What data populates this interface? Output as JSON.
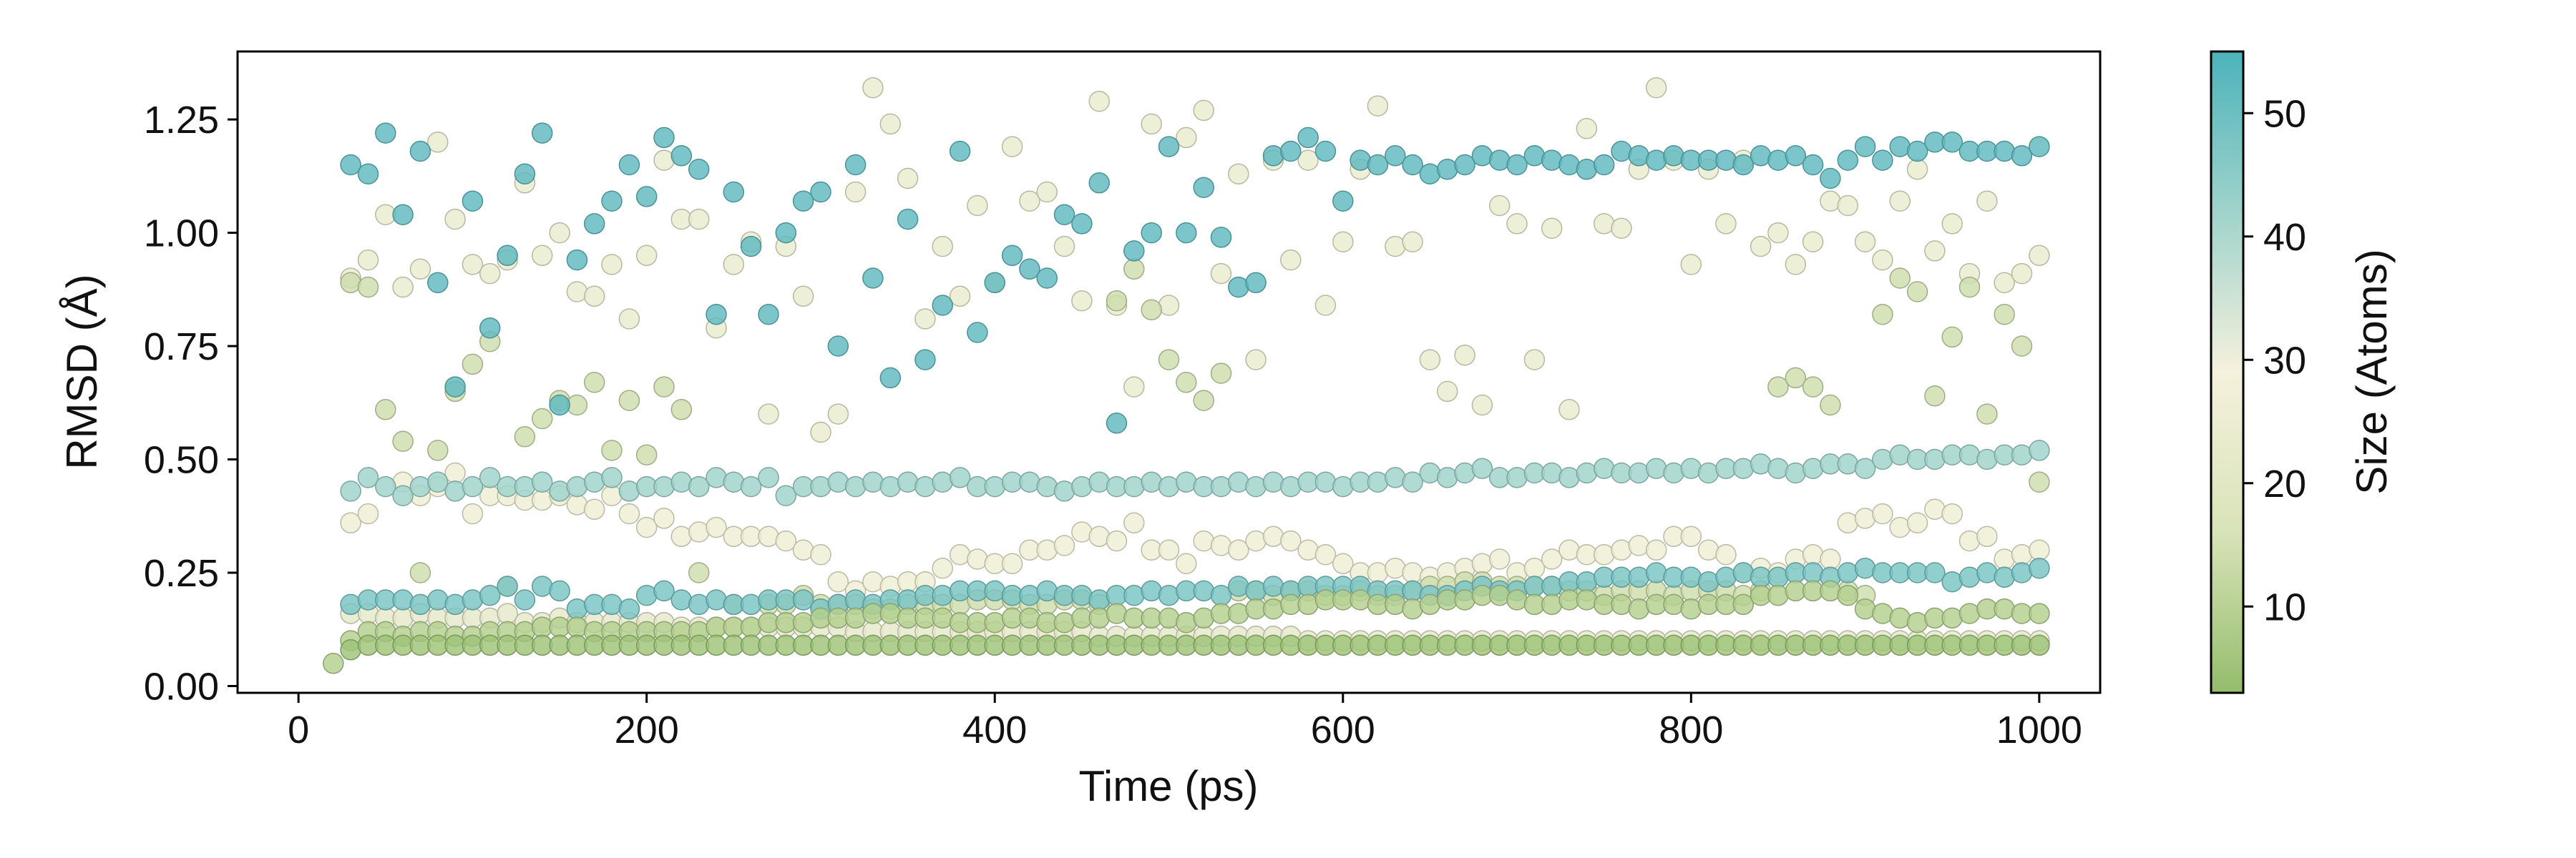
{
  "chart_data": {
    "type": "scatter",
    "title": "",
    "xlabel": "Time (ps)",
    "ylabel": "RMSD (Å)",
    "xlim": [
      -35,
      1035
    ],
    "ylim": [
      -0.015,
      1.4
    ],
    "xticks": [
      0,
      200,
      400,
      600,
      800,
      1000
    ],
    "xtick_labels": [
      "0",
      "200",
      "400",
      "600",
      "800",
      "1000"
    ],
    "yticks": [
      0.0,
      0.25,
      0.5,
      0.75,
      1.0,
      1.25
    ],
    "ytick_labels": [
      "0.00",
      "0.25",
      "0.50",
      "0.75",
      "1.00",
      "1.25"
    ],
    "grid": false,
    "colorbar": {
      "label": "Size (Atoms)",
      "range": [
        3,
        55
      ],
      "ticks": [
        10,
        20,
        30,
        40,
        50
      ],
      "tick_labels": [
        "10",
        "20",
        "30",
        "40",
        "50"
      ],
      "colors": [
        "#93bd6b",
        "#d8e3b8",
        "#f5f1dc",
        "#9fd3cb",
        "#4cb3bb"
      ]
    },
    "x": [
      20,
      30,
      40,
      50,
      60,
      70,
      80,
      90,
      100,
      110,
      120,
      130,
      140,
      150,
      160,
      170,
      180,
      190,
      200,
      210,
      220,
      230,
      240,
      250,
      260,
      270,
      280,
      290,
      300,
      310,
      320,
      330,
      340,
      350,
      360,
      370,
      380,
      390,
      400,
      410,
      420,
      430,
      440,
      450,
      460,
      470,
      480,
      490,
      500,
      510,
      520,
      530,
      540,
      550,
      560,
      570,
      580,
      590,
      600,
      610,
      620,
      630,
      640,
      650,
      660,
      670,
      680,
      690,
      700,
      710,
      720,
      730,
      740,
      750,
      760,
      770,
      780,
      790,
      800,
      810,
      820,
      830,
      840,
      850,
      860,
      870,
      880,
      890,
      900,
      910,
      920,
      930,
      940,
      950,
      960,
      970,
      980,
      990,
      1000
    ],
    "series": [
      {
        "size": 52,
        "values": [
          null,
          1.15,
          1.13,
          1.22,
          1.04,
          1.18,
          0.89,
          0.66,
          1.07,
          0.79,
          0.95,
          1.13,
          1.22,
          0.62,
          0.94,
          1.02,
          1.07,
          1.15,
          1.08,
          1.21,
          1.17,
          1.14,
          0.82,
          1.09,
          0.97,
          0.82,
          1.0,
          1.07,
          1.09,
          0.75,
          1.15,
          0.9,
          0.68,
          1.03,
          0.72,
          0.84,
          1.18,
          0.78,
          0.89,
          0.95,
          0.92,
          0.9,
          1.04,
          1.02,
          1.11,
          0.58,
          0.96,
          1.0,
          1.19,
          1.0,
          1.1,
          0.99,
          0.88,
          0.89,
          1.17,
          1.18,
          1.21,
          1.18,
          1.07,
          1.16,
          1.15,
          1.17,
          1.15,
          1.13,
          1.14,
          1.15,
          1.17,
          1.16,
          1.15,
          1.17,
          1.16,
          1.15,
          1.14,
          1.15,
          1.18,
          1.17,
          1.16,
          1.17,
          1.16,
          1.16,
          1.16,
          1.15,
          1.17,
          1.16,
          1.17,
          1.15,
          1.12,
          1.16,
          1.19,
          1.16,
          1.19,
          1.18,
          1.2,
          1.2,
          1.18,
          1.18,
          1.18,
          1.17,
          1.19
        ]
      },
      {
        "size": 42,
        "values": [
          null,
          0.43,
          0.46,
          0.44,
          0.42,
          0.44,
          0.45,
          0.43,
          0.44,
          0.46,
          0.44,
          0.44,
          0.45,
          0.43,
          0.44,
          0.45,
          0.46,
          0.43,
          0.44,
          0.44,
          0.45,
          0.44,
          0.46,
          0.45,
          0.44,
          0.46,
          0.42,
          0.44,
          0.44,
          0.45,
          0.44,
          0.45,
          0.44,
          0.45,
          0.44,
          0.45,
          0.46,
          0.44,
          0.44,
          0.45,
          0.45,
          0.44,
          0.43,
          0.44,
          0.45,
          0.44,
          0.44,
          0.45,
          0.44,
          0.45,
          0.44,
          0.44,
          0.45,
          0.44,
          0.45,
          0.44,
          0.45,
          0.45,
          0.44,
          0.45,
          0.45,
          0.46,
          0.45,
          0.47,
          0.46,
          0.47,
          0.48,
          0.46,
          0.46,
          0.47,
          0.47,
          0.46,
          0.47,
          0.48,
          0.47,
          0.47,
          0.48,
          0.47,
          0.48,
          0.47,
          0.48,
          0.48,
          0.49,
          0.48,
          0.47,
          0.48,
          0.49,
          0.49,
          0.48,
          0.5,
          0.51,
          0.5,
          0.5,
          0.51,
          0.51,
          0.5,
          0.51,
          0.51,
          0.52
        ]
      },
      {
        "size": 48,
        "values": [
          null,
          0.18,
          0.19,
          0.19,
          0.19,
          0.18,
          0.19,
          0.18,
          0.19,
          0.2,
          0.22,
          0.19,
          0.22,
          0.21,
          0.17,
          0.18,
          0.18,
          0.17,
          0.2,
          0.21,
          0.19,
          0.18,
          0.19,
          0.18,
          0.18,
          0.19,
          0.19,
          0.19,
          0.17,
          0.18,
          0.19,
          0.18,
          0.19,
          0.19,
          0.2,
          0.2,
          0.21,
          0.21,
          0.21,
          0.2,
          0.2,
          0.21,
          0.2,
          0.2,
          0.19,
          0.2,
          0.2,
          0.21,
          0.2,
          0.21,
          0.21,
          0.2,
          0.22,
          0.21,
          0.22,
          0.21,
          0.22,
          0.22,
          0.22,
          0.22,
          0.21,
          0.21,
          0.21,
          0.2,
          0.2,
          0.21,
          0.22,
          0.21,
          0.21,
          0.22,
          0.22,
          0.23,
          0.23,
          0.24,
          0.24,
          0.24,
          0.25,
          0.24,
          0.24,
          0.23,
          0.24,
          0.25,
          0.24,
          0.24,
          0.25,
          0.25,
          0.24,
          0.25,
          0.26,
          0.25,
          0.25,
          0.25,
          0.25,
          0.23,
          0.24,
          0.25,
          0.24,
          0.25,
          0.26
        ]
      },
      {
        "size": 24,
        "values": [
          null,
          0.9,
          0.94,
          1.04,
          0.88,
          0.92,
          1.2,
          1.03,
          0.93,
          0.91,
          0.94,
          1.11,
          0.95,
          1.0,
          0.87,
          0.86,
          0.93,
          0.81,
          0.95,
          1.16,
          1.03,
          1.03,
          0.79,
          0.93,
          0.98,
          0.6,
          0.97,
          0.86,
          0.56,
          0.6,
          1.09,
          1.32,
          1.24,
          1.12,
          0.81,
          0.97,
          0.86,
          1.06,
          0.89,
          1.19,
          1.07,
          1.09,
          0.97,
          0.85,
          1.29,
          0.84,
          0.66,
          1.24,
          0.84,
          1.21,
          1.27,
          0.91,
          1.13,
          0.72,
          1.16,
          0.94,
          1.16,
          0.84,
          0.98,
          1.14,
          1.28,
          0.97,
          0.98,
          0.72,
          0.65,
          0.73,
          0.62,
          1.06,
          1.02,
          0.72,
          1.01,
          0.61,
          1.23,
          1.02,
          1.01,
          1.14,
          1.32,
          1.16,
          0.93,
          1.14,
          1.02,
          1.16,
          0.97,
          1.0,
          0.93,
          0.98,
          1.07,
          1.06,
          0.98,
          0.94,
          1.07,
          1.14,
          0.96,
          1.02,
          0.91,
          1.07,
          0.89,
          0.91,
          0.95
        ]
      },
      {
        "size": 26,
        "values": [
          null,
          0.36,
          0.38,
          null,
          0.45,
          0.42,
          0.44,
          0.47,
          0.38,
          0.42,
          0.42,
          0.41,
          0.41,
          0.42,
          0.4,
          0.39,
          0.42,
          0.38,
          0.35,
          0.37,
          0.33,
          0.34,
          0.35,
          0.33,
          0.33,
          0.33,
          0.32,
          0.3,
          0.29,
          0.23,
          0.21,
          0.23,
          0.22,
          0.23,
          0.23,
          0.26,
          0.29,
          0.28,
          0.27,
          0.27,
          0.3,
          0.3,
          0.31,
          0.34,
          0.33,
          0.32,
          0.36,
          0.3,
          0.3,
          0.27,
          0.32,
          0.31,
          0.3,
          0.32,
          0.33,
          0.32,
          0.3,
          0.29,
          0.27,
          0.25,
          0.25,
          0.26,
          0.25,
          0.24,
          0.25,
          0.26,
          0.27,
          0.28,
          0.25,
          0.26,
          0.28,
          0.3,
          0.29,
          0.29,
          0.3,
          0.31,
          0.3,
          0.33,
          0.33,
          0.3,
          0.29,
          0.25,
          0.26,
          0.25,
          0.28,
          0.29,
          0.28,
          0.36,
          0.37,
          0.38,
          0.35,
          0.36,
          0.39,
          0.38,
          0.32,
          0.33,
          0.28,
          0.29,
          0.3
        ]
      },
      {
        "size": 22,
        "values": [
          null,
          0.16,
          0.16,
          0.15,
          0.15,
          0.16,
          0.15,
          0.15,
          0.15,
          0.15,
          0.16,
          0.14,
          0.14,
          0.15,
          0.14,
          0.14,
          0.14,
          0.14,
          0.14,
          0.14,
          0.13,
          0.13,
          0.13,
          0.13,
          0.13,
          0.13,
          0.13,
          0.13,
          0.13,
          0.13,
          0.12,
          0.12,
          0.12,
          0.12,
          0.12,
          0.12,
          0.12,
          0.12,
          0.12,
          0.12,
          0.12,
          0.12,
          0.12,
          0.12,
          0.11,
          0.11,
          0.11,
          0.11,
          0.11,
          0.11,
          0.11,
          0.11,
          0.11,
          0.11,
          0.11,
          0.11,
          0.1,
          0.1,
          0.1,
          0.1,
          0.1,
          0.1,
          0.1,
          0.1,
          0.1,
          0.1,
          0.1,
          0.1,
          0.1,
          0.1,
          0.1,
          0.1,
          0.1,
          0.1,
          0.1,
          0.1,
          0.1,
          0.1,
          0.1,
          0.1,
          0.1,
          0.1,
          0.1,
          0.1,
          0.1,
          0.1,
          0.1,
          0.1,
          0.1,
          0.1,
          0.1,
          0.1,
          0.1,
          0.1,
          0.1,
          0.1,
          0.1,
          0.1,
          0.1
        ]
      },
      {
        "size": 14,
        "values": [
          null,
          0.89,
          0.88,
          0.61,
          0.54,
          0.25,
          0.52,
          0.65,
          0.71,
          0.76,
          0.22,
          0.55,
          0.59,
          0.63,
          0.62,
          0.67,
          0.52,
          0.63,
          0.51,
          0.66,
          0.61,
          0.25,
          null,
          0.18,
          null,
          0.18,
          0.18,
          0.2,
          0.18,
          0.18,
          0.18,
          0.17,
          0.17,
          0.18,
          0.18,
          0.18,
          0.18,
          0.19,
          0.19,
          0.19,
          0.18,
          0.18,
          0.19,
          0.19,
          0.18,
          0.85,
          0.92,
          0.83,
          0.72,
          0.67,
          0.63,
          0.69,
          0.21,
          0.21,
          0.2,
          0.21,
          0.21,
          0.2,
          0.2,
          0.21,
          0.2,
          0.2,
          0.21,
          0.22,
          0.22,
          0.23,
          0.23,
          0.22,
          0.22,
          0.22,
          0.22,
          0.21,
          0.21,
          0.2,
          0.21,
          0.21,
          0.21,
          0.2,
          0.21,
          0.21,
          0.21,
          0.2,
          0.21,
          0.66,
          0.68,
          0.66,
          0.62,
          0.21,
          0.2,
          0.82,
          0.9,
          0.87,
          0.64,
          0.77,
          0.88,
          0.6,
          0.82,
          0.75,
          0.45
        ]
      },
      {
        "size": 9,
        "values": [
          0.05,
          0.1,
          0.12,
          0.12,
          0.11,
          0.12,
          0.12,
          0.11,
          0.11,
          0.12,
          0.12,
          0.12,
          0.13,
          0.13,
          0.13,
          0.12,
          0.12,
          0.12,
          0.12,
          0.12,
          0.12,
          0.12,
          0.13,
          0.13,
          0.13,
          0.14,
          0.14,
          0.14,
          0.15,
          0.15,
          0.15,
          0.16,
          0.16,
          0.15,
          0.15,
          0.15,
          0.14,
          0.14,
          0.14,
          0.15,
          0.15,
          0.14,
          0.14,
          0.15,
          0.15,
          0.16,
          0.15,
          0.15,
          0.15,
          0.14,
          0.15,
          0.16,
          0.16,
          0.17,
          0.17,
          0.18,
          0.18,
          0.19,
          0.19,
          0.19,
          0.18,
          0.18,
          0.17,
          0.18,
          0.19,
          0.19,
          0.2,
          0.2,
          0.19,
          0.18,
          0.18,
          0.19,
          0.19,
          0.18,
          0.18,
          0.17,
          0.18,
          0.18,
          0.17,
          0.18,
          0.18,
          0.18,
          0.2,
          0.2,
          0.21,
          0.21,
          0.21,
          0.2,
          0.17,
          0.16,
          0.15,
          0.14,
          0.15,
          0.15,
          0.16,
          0.17,
          0.17,
          0.16,
          0.16
        ]
      },
      {
        "size": 5,
        "values": [
          null,
          0.08,
          0.09,
          0.09,
          0.09,
          0.09,
          0.09,
          0.09,
          0.09,
          0.09,
          0.09,
          0.09,
          0.09,
          0.09,
          0.09,
          0.09,
          0.09,
          0.09,
          0.09,
          0.09,
          0.09,
          0.09,
          0.09,
          0.09,
          0.09,
          0.09,
          0.09,
          0.09,
          0.09,
          0.09,
          0.09,
          0.09,
          0.09,
          0.09,
          0.09,
          0.09,
          0.09,
          0.09,
          0.09,
          0.09,
          0.09,
          0.09,
          0.09,
          0.09,
          0.09,
          0.09,
          0.09,
          0.09,
          0.09,
          0.09,
          0.09,
          0.09,
          0.09,
          0.09,
          0.09,
          0.09,
          0.09,
          0.09,
          0.09,
          0.09,
          0.09,
          0.09,
          0.09,
          0.09,
          0.09,
          0.09,
          0.09,
          0.09,
          0.09,
          0.09,
          0.09,
          0.09,
          0.09,
          0.09,
          0.09,
          0.09,
          0.09,
          0.09,
          0.09,
          0.09,
          0.09,
          0.09,
          0.09,
          0.09,
          0.09,
          0.09,
          0.09,
          0.09,
          0.09,
          0.09,
          0.09,
          0.09,
          0.09,
          0.09,
          0.09,
          0.09,
          0.09,
          0.09,
          0.09
        ]
      }
    ]
  }
}
